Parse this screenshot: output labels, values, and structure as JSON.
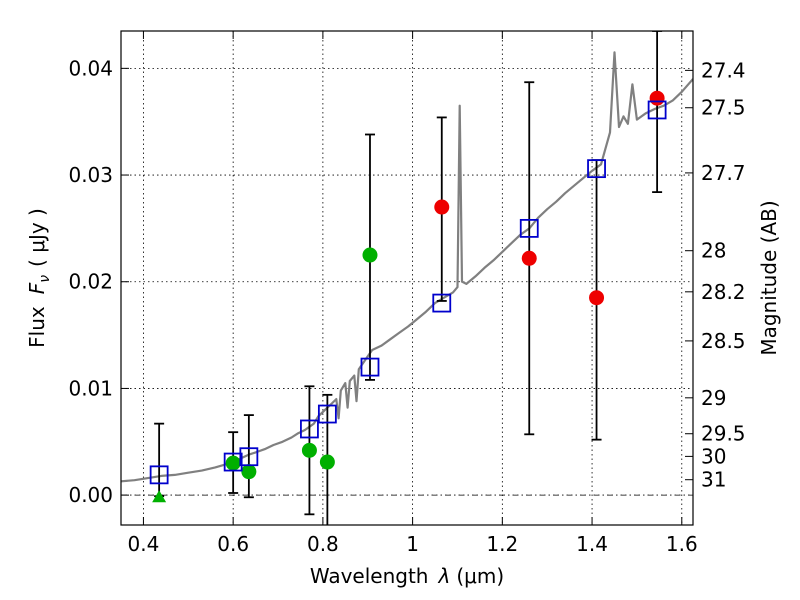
{
  "chart_data": {
    "type": "scatter",
    "xlabel_text": "Wavelength",
    "xlabel_symbol": "λ",
    "xlabel_unit": "(μm)",
    "ylabel_text": "Flux",
    "ylabel_symbol": "F",
    "ylabel_subscript": "ν",
    "ylabel_unit": "( μJy )",
    "y2label": "Magnitude (AB)",
    "xlim": [
      0.35,
      1.625
    ],
    "ylim": [
      -0.0028,
      0.0435
    ],
    "grid": true,
    "x_ticks": [
      0.4,
      0.6,
      0.8,
      1.0,
      1.2,
      1.4,
      1.6
    ],
    "x_tick_labels": [
      "0.4",
      "0.6",
      "0.8",
      "1",
      "1.2",
      "1.4",
      "1.6"
    ],
    "y_ticks": [
      0.0,
      0.01,
      0.02,
      0.03,
      0.04
    ],
    "y_tick_labels": [
      "0.00",
      "0.01",
      "0.02",
      "0.03",
      "0.04"
    ],
    "mag_ticks": [
      {
        "mag": 27.4,
        "label": "27.4"
      },
      {
        "mag": 27.5,
        "label": "27.5"
      },
      {
        "mag": 27.7,
        "label": "27.7"
      },
      {
        "mag": 28,
        "label": "28"
      },
      {
        "mag": 28.2,
        "label": "28.2"
      },
      {
        "mag": 28.5,
        "label": "28.5"
      },
      {
        "mag": 29,
        "label": "29"
      },
      {
        "mag": 29.5,
        "label": "29.5"
      },
      {
        "mag": 30,
        "label": "30"
      },
      {
        "mag": 31,
        "label": "31"
      }
    ],
    "colors": {
      "spectrum": "#808080",
      "model": "#0000cc",
      "detection_green": "#00b000",
      "detection_red": "#ee0000",
      "errorbar": "#000000"
    },
    "model_points": [
      {
        "x": 0.435,
        "y": 0.0019
      },
      {
        "x": 0.6,
        "y": 0.0031
      },
      {
        "x": 0.635,
        "y": 0.0036
      },
      {
        "x": 0.77,
        "y": 0.0062
      },
      {
        "x": 0.81,
        "y": 0.0076
      },
      {
        "x": 0.905,
        "y": 0.012
      },
      {
        "x": 1.065,
        "y": 0.018
      },
      {
        "x": 1.26,
        "y": 0.025
      },
      {
        "x": 1.41,
        "y": 0.0306
      },
      {
        "x": 1.545,
        "y": 0.0361
      }
    ],
    "error_bars": [
      {
        "x": 0.435,
        "low": -0.0001,
        "high": 0.0067
      },
      {
        "x": 0.6,
        "low": 0.0002,
        "high": 0.0059
      },
      {
        "x": 0.635,
        "low": -0.0002,
        "high": 0.0075
      },
      {
        "x": 0.77,
        "low": -0.0018,
        "high": 0.0102
      },
      {
        "x": 0.81,
        "low": -0.003,
        "high": 0.0094
      },
      {
        "x": 0.905,
        "low": 0.0108,
        "high": 0.0338
      },
      {
        "x": 1.065,
        "low": 0.0182,
        "high": 0.0354
      },
      {
        "x": 1.26,
        "low": 0.0057,
        "high": 0.0387
      },
      {
        "x": 1.41,
        "low": 0.0052,
        "high": 0.0314
      },
      {
        "x": 1.545,
        "low": 0.0284,
        "high": 0.0435
      }
    ],
    "green_points": [
      {
        "x": 0.6,
        "y": 0.003
      },
      {
        "x": 0.635,
        "y": 0.0022
      },
      {
        "x": 0.77,
        "y": 0.0042
      },
      {
        "x": 0.81,
        "y": 0.0031
      },
      {
        "x": 0.905,
        "y": 0.0225
      }
    ],
    "green_triangle": {
      "x": 0.435,
      "y": -0.0002
    },
    "red_points": [
      {
        "x": 1.065,
        "y": 0.027
      },
      {
        "x": 1.26,
        "y": 0.0222
      },
      {
        "x": 1.41,
        "y": 0.0185
      },
      {
        "x": 1.545,
        "y": 0.0372
      }
    ],
    "spectrum": [
      [
        0.35,
        0.0013
      ],
      [
        0.38,
        0.0014
      ],
      [
        0.41,
        0.0016
      ],
      [
        0.44,
        0.0018
      ],
      [
        0.47,
        0.0019
      ],
      [
        0.5,
        0.0021
      ],
      [
        0.53,
        0.0023
      ],
      [
        0.56,
        0.0026
      ],
      [
        0.585,
        0.0029
      ],
      [
        0.6,
        0.0031
      ],
      [
        0.62,
        0.0035
      ],
      [
        0.635,
        0.0038
      ],
      [
        0.65,
        0.004
      ],
      [
        0.67,
        0.0043
      ],
      [
        0.69,
        0.0047
      ],
      [
        0.71,
        0.005
      ],
      [
        0.73,
        0.0054
      ],
      [
        0.745,
        0.0058
      ],
      [
        0.76,
        0.0061
      ],
      [
        0.77,
        0.0064
      ],
      [
        0.78,
        0.0067
      ],
      [
        0.79,
        0.0074
      ],
      [
        0.8,
        0.0078
      ],
      [
        0.81,
        0.0082
      ],
      [
        0.82,
        0.0086
      ],
      [
        0.83,
        0.009
      ],
      [
        0.835,
        0.0072
      ],
      [
        0.84,
        0.0098
      ],
      [
        0.85,
        0.0105
      ],
      [
        0.855,
        0.0082
      ],
      [
        0.86,
        0.0107
      ],
      [
        0.87,
        0.0112
      ],
      [
        0.875,
        0.0088
      ],
      [
        0.88,
        0.0118
      ],
      [
        0.89,
        0.0124
      ],
      [
        0.9,
        0.013
      ],
      [
        0.91,
        0.0136
      ],
      [
        0.93,
        0.014
      ],
      [
        0.95,
        0.0146
      ],
      [
        0.97,
        0.0152
      ],
      [
        0.99,
        0.0158
      ],
      [
        1.01,
        0.0165
      ],
      [
        1.03,
        0.0172
      ],
      [
        1.05,
        0.018
      ],
      [
        1.07,
        0.0185
      ],
      [
        1.09,
        0.019
      ],
      [
        1.1,
        0.0195
      ],
      [
        1.105,
        0.0365
      ],
      [
        1.11,
        0.02
      ],
      [
        1.12,
        0.0198
      ],
      [
        1.14,
        0.0205
      ],
      [
        1.16,
        0.0213
      ],
      [
        1.18,
        0.022
      ],
      [
        1.2,
        0.0228
      ],
      [
        1.22,
        0.0236
      ],
      [
        1.24,
        0.0244
      ],
      [
        1.26,
        0.025
      ],
      [
        1.28,
        0.026
      ],
      [
        1.3,
        0.0268
      ],
      [
        1.32,
        0.0275
      ],
      [
        1.34,
        0.0283
      ],
      [
        1.36,
        0.029
      ],
      [
        1.38,
        0.0297
      ],
      [
        1.4,
        0.0304
      ],
      [
        1.42,
        0.031
      ],
      [
        1.44,
        0.034
      ],
      [
        1.45,
        0.0415
      ],
      [
        1.46,
        0.0345
      ],
      [
        1.47,
        0.0355
      ],
      [
        1.48,
        0.0348
      ],
      [
        1.49,
        0.0385
      ],
      [
        1.5,
        0.0352
      ],
      [
        1.52,
        0.0358
      ],
      [
        1.54,
        0.0362
      ],
      [
        1.56,
        0.0365
      ],
      [
        1.58,
        0.037
      ],
      [
        1.6,
        0.0378
      ],
      [
        1.625,
        0.039
      ]
    ]
  }
}
